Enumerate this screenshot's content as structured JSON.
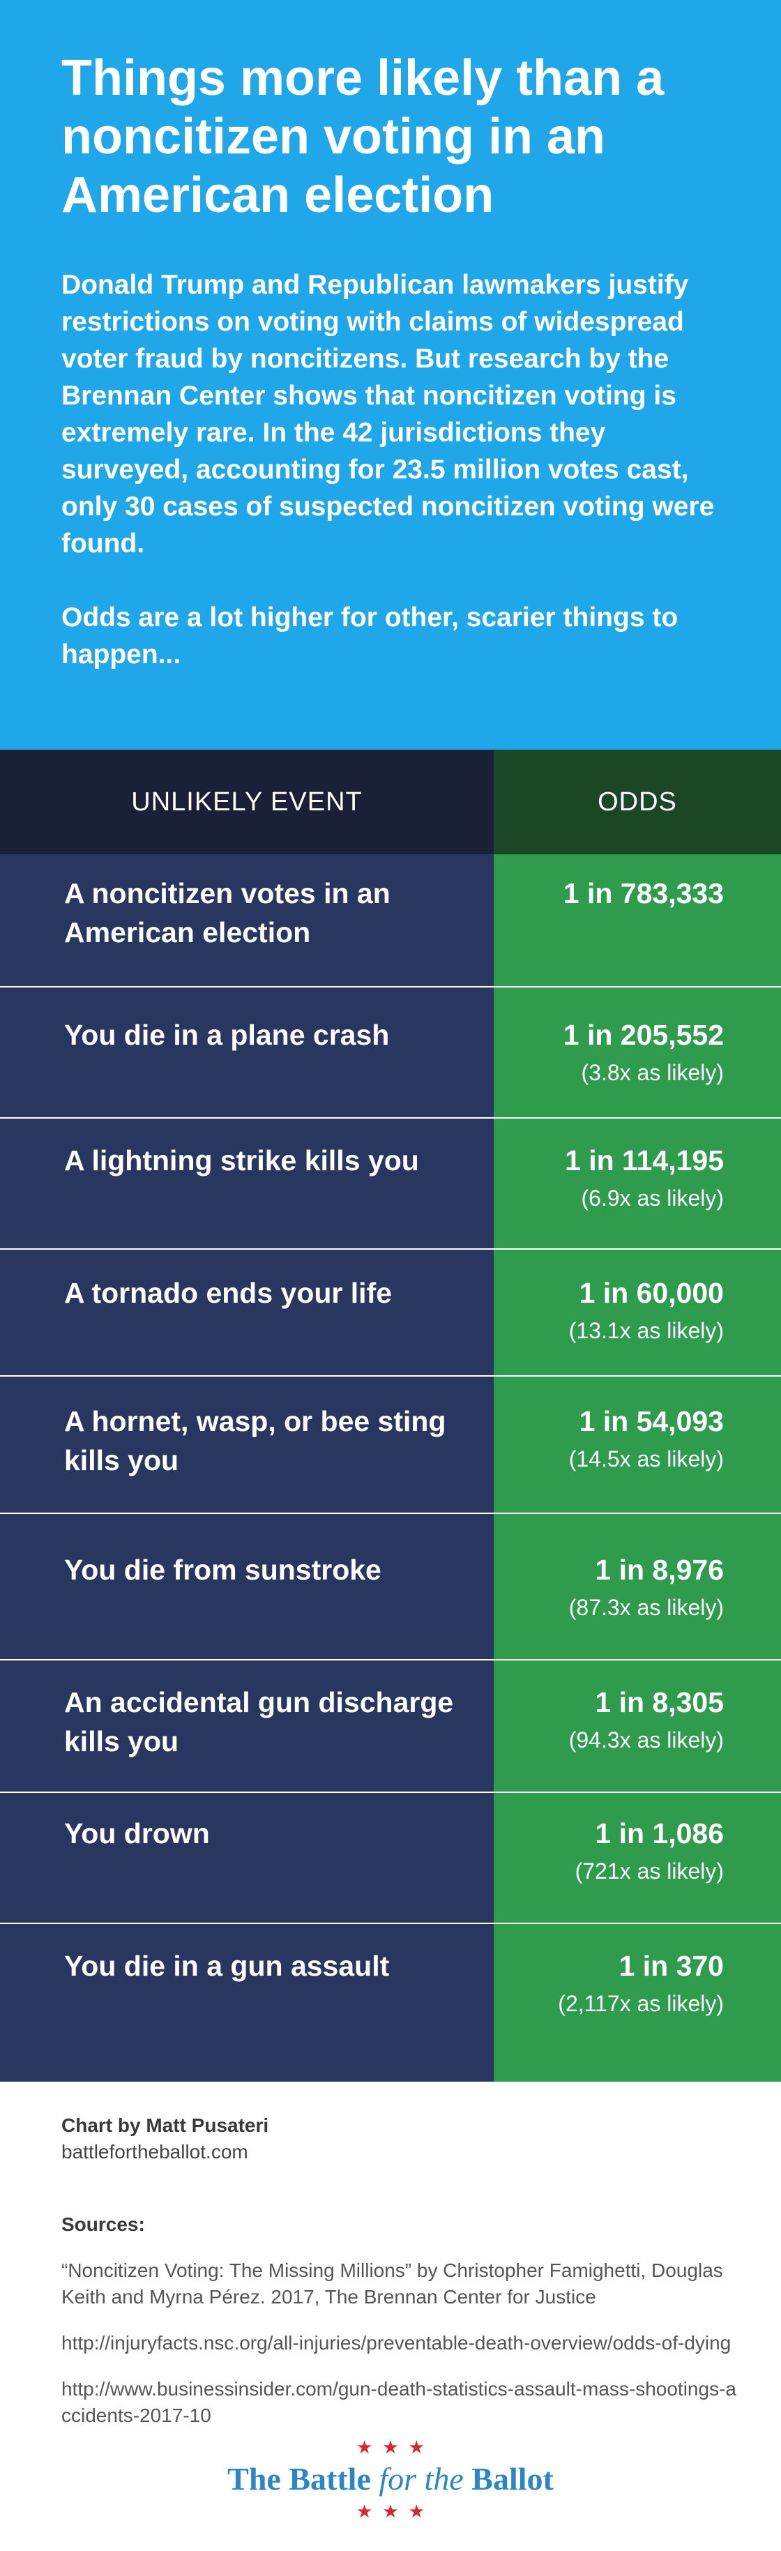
{
  "header": {
    "title": "Things more likely than a noncitizen voting in an American election",
    "intro": "Donald Trump and Republican lawmakers justify restrictions on voting with claims of widespread voter fraud by noncitizens. But research by the Brennan Center shows that noncitizen voting is extremely rare. In the 42 jurisdictions they surveyed, accounting for 23.5 million votes cast, only 30 cases of suspected noncitizen voting were found.",
    "intro_2": "Odds are a lot higher for other, scarier things to happen..."
  },
  "table": {
    "col_event": "UNLIKELY EVENT",
    "col_odds": "ODDS",
    "rows": [
      {
        "event": "A noncitizen votes in an American election",
        "odds": "1 in 783,333",
        "likely": ""
      },
      {
        "event": "You die in a plane crash",
        "odds": "1 in 205,552",
        "likely": "(3.8x as likely)"
      },
      {
        "event": "A lightning strike kills you",
        "odds": "1 in 114,195",
        "likely": "(6.9x as likely)"
      },
      {
        "event": "A tornado ends your life",
        "odds": "1 in 60,000",
        "likely": "(13.1x as likely)"
      },
      {
        "event": "A hornet, wasp, or bee sting kills you",
        "odds": "1 in 54,093",
        "likely": "(14.5x as likely)"
      },
      {
        "event": "You die from sunstroke",
        "odds": "1 in 8,976",
        "likely": "(87.3x as likely)"
      },
      {
        "event": "An accidental gun discharge kills you",
        "odds": "1 in 8,305",
        "likely": "(94.3x as likely)"
      },
      {
        "event": "You drown",
        "odds": "1 in 1,086",
        "likely": "(721x as likely)"
      },
      {
        "event": "You die in a gun assault",
        "odds": "1 in 370",
        "likely": "(2,117x as likely)"
      }
    ]
  },
  "footer": {
    "credit": "Chart by Matt Pusateri",
    "site": "battlefortheballot.com",
    "sources_label": "Sources:",
    "sources": [
      "“Noncitizen Voting: The Missing Millions” by Christopher Famighetti, Douglas Keith and Myrna Pérez. 2017, The Brennan Center for  Justice",
      "http://injuryfacts.nsc.org/all-injuries/preventable-death-overview/odds-of-dying",
      "http://www.businessinsider.com/gun-death-statistics-assault-mass-shootings-accidents-2017-10"
    ]
  },
  "logo": {
    "stars": "★★★",
    "brand_1": "The Battle ",
    "brand_2": "for the",
    "brand_3": " Ballot",
    "stars_bottom": "★★★"
  },
  "colors": {
    "header_bg": "#1fa7ea",
    "event_bg": "#283660",
    "odds_bg": "#2f9b4c",
    "event_head_bg": "#1a2035",
    "odds_head_bg": "#1b4726",
    "star_red": "#d8262c",
    "brand_blue": "#2c85c6"
  }
}
